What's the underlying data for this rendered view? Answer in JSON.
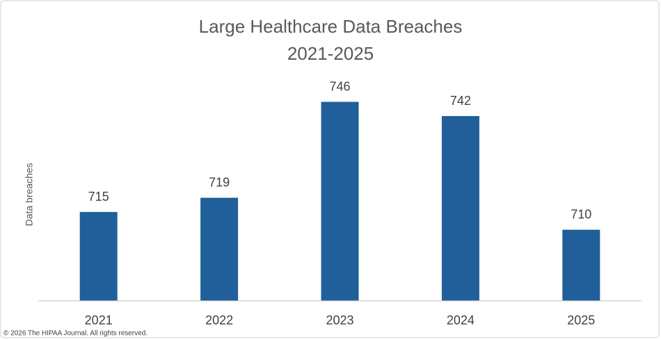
{
  "chart_data": {
    "type": "bar",
    "title": "Large Healthcare Data Breaches",
    "subtitle": "2021-2025",
    "y_label": "Data breaches",
    "categories": [
      "2021",
      "2022",
      "2023",
      "2024",
      "2025"
    ],
    "values": [
      715,
      719,
      746,
      742,
      710
    ],
    "color": "#215f9a",
    "ylim": [
      690,
      760
    ]
  },
  "footer": "© 2026 The HIPAA Journal. All rights reserved."
}
